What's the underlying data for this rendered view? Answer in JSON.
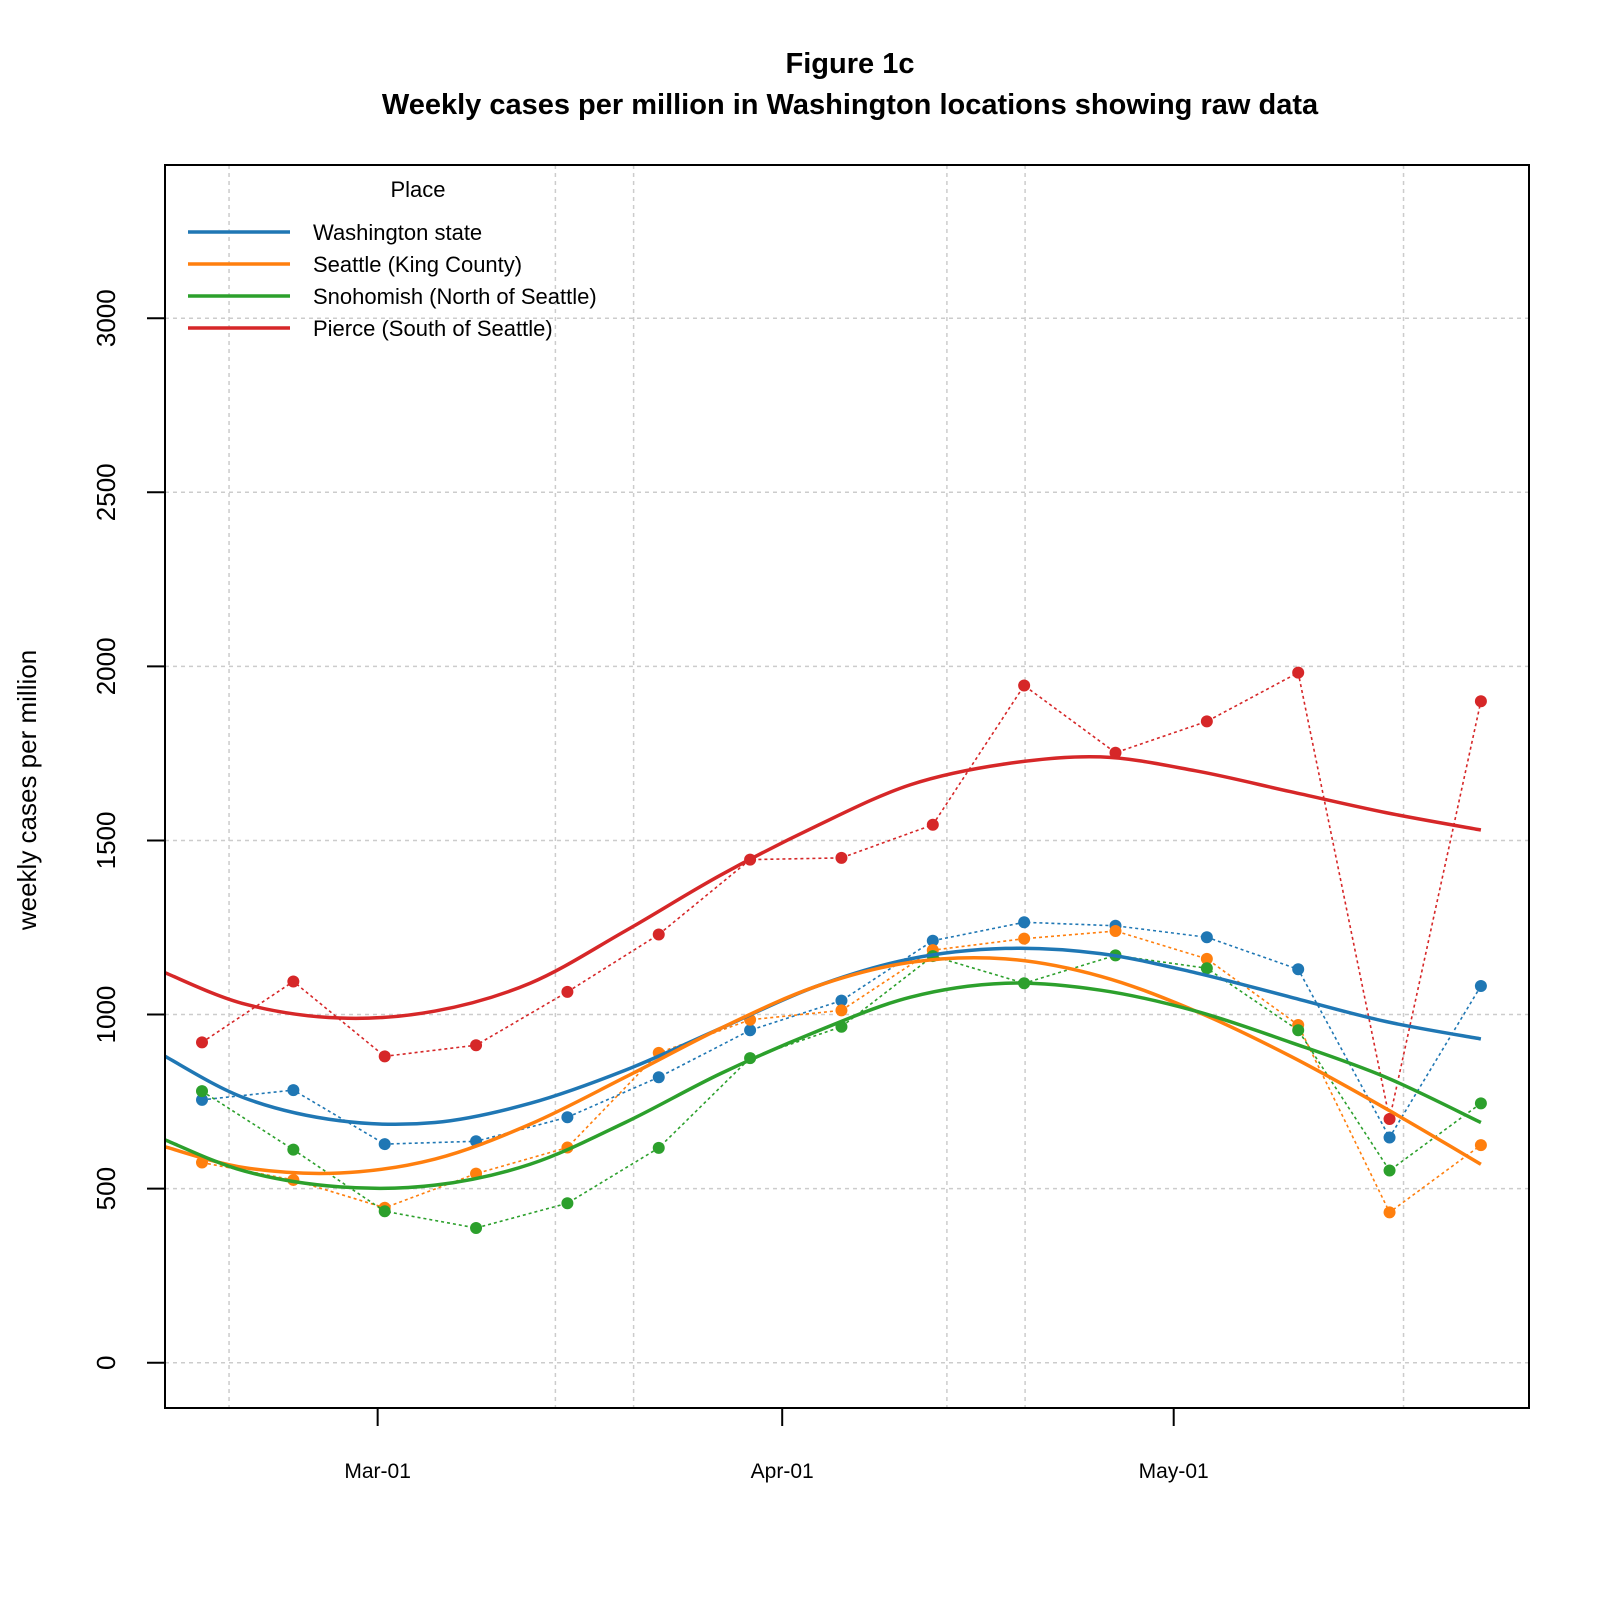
{
  "chart_data": {
    "type": "line",
    "title": "Figure 1c",
    "subtitle": "Weekly cases per million in Washington locations showing raw data",
    "xlabel": "",
    "ylabel": "weekly cases per million",
    "x_tick_labels": [
      "Mar-01",
      "Apr-01",
      "May-01"
    ],
    "y_tick_labels": [
      "0",
      "500",
      "1000",
      "1500",
      "2000",
      "2500",
      "3000"
    ],
    "ylim": [
      -130,
      3440
    ],
    "grid": true,
    "legend": {
      "title": "Place",
      "position": "top-left"
    },
    "x": [
      "2021-02-16",
      "2021-02-23",
      "2021-03-02",
      "2021-03-09",
      "2021-03-16",
      "2021-03-23",
      "2021-03-30",
      "2021-04-06",
      "2021-04-13",
      "2021-04-20",
      "2021-04-27",
      "2021-05-04",
      "2021-05-11",
      "2021-05-18",
      "2021-05-25"
    ],
    "series": [
      {
        "name": "Washington state",
        "color": "#1f77b4",
        "values": [
          755,
          783,
          628,
          636,
          705,
          820,
          955,
          1040,
          1212,
          1265,
          1255,
          1222,
          1130,
          647,
          1082
        ],
        "smoothed": [
          880,
          760,
          695,
          690,
          745,
          840,
          960,
          1080,
          1160,
          1190,
          1175,
          1120,
          1050,
          980,
          930
        ]
      },
      {
        "name": "Seattle (King County)",
        "color": "#ff7f0e",
        "values": [
          575,
          525,
          445,
          543,
          618,
          890,
          985,
          1012,
          1185,
          1218,
          1240,
          1160,
          970,
          432,
          625
        ],
        "smoothed": [
          620,
          560,
          545,
          585,
          685,
          820,
          960,
          1080,
          1150,
          1160,
          1110,
          1010,
          880,
          730,
          570
        ]
      },
      {
        "name": "Snohomish (North of Seattle)",
        "color": "#2ca02c",
        "values": [
          780,
          612,
          435,
          387,
          458,
          617,
          875,
          965,
          1168,
          1090,
          1170,
          1133,
          955,
          552,
          745
        ],
        "smoothed": [
          640,
          550,
          505,
          510,
          570,
          690,
          830,
          950,
          1050,
          1090,
          1070,
          1010,
          920,
          820,
          690
        ]
      },
      {
        "name": "Pierce (South of Seattle)",
        "color": "#d62728",
        "values": [
          920,
          1095,
          880,
          912,
          1065,
          1230,
          1445,
          1450,
          1545,
          1945,
          1752,
          1842,
          1982,
          700,
          1900
        ],
        "smoothed": [
          1120,
          1030,
          990,
          1010,
          1090,
          1240,
          1400,
          1540,
          1660,
          1720,
          1740,
          1700,
          1640,
          1580,
          1530
        ]
      }
    ]
  }
}
